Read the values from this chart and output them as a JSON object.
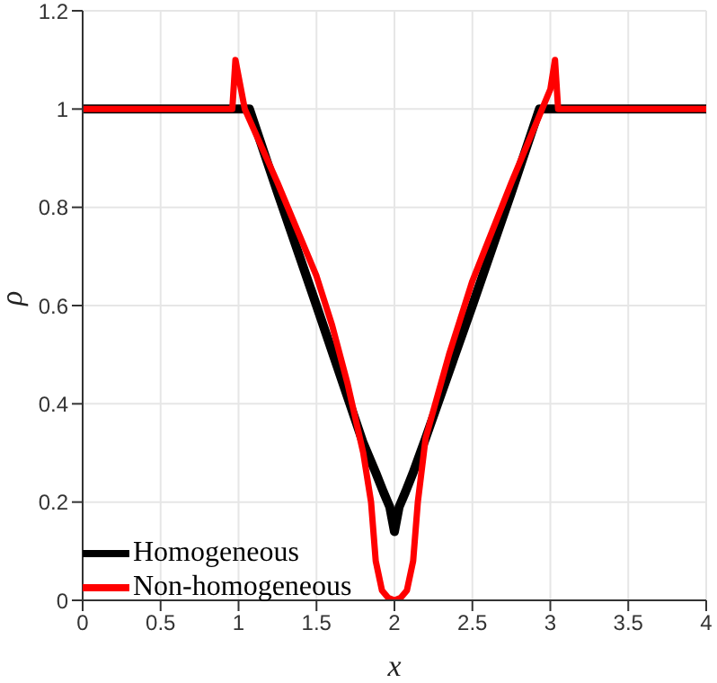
{
  "chart_data": {
    "type": "line",
    "xlabel": "x",
    "ylabel": "ρ",
    "xlim": [
      0,
      4
    ],
    "xticks": [
      0,
      0.5,
      1,
      1.5,
      2,
      2.5,
      3,
      3.5,
      4
    ],
    "ylim": [
      0,
      1.2
    ],
    "yticks": [
      0,
      0.2,
      0.4,
      0.6,
      0.8,
      1,
      1.2
    ],
    "grid": true,
    "legend": "bottom left",
    "marker": "none",
    "line_style": "solid",
    "series": [
      {
        "name": "Homogeneous",
        "color": "#000000",
        "x": [
          0,
          1.0,
          1.07,
          1.25,
          1.5,
          1.8,
          1.88,
          1.93,
          1.97,
          2.0,
          2.03,
          2.07,
          2.12,
          2.2,
          2.5,
          2.75,
          2.93,
          3.0,
          4
        ],
        "values": [
          1,
          1,
          1,
          0.83,
          0.6,
          0.32,
          0.26,
          0.22,
          0.19,
          0.14,
          0.19,
          0.22,
          0.26,
          0.33,
          0.6,
          0.83,
          1,
          1,
          1
        ]
      },
      {
        "name": "Non-homogeneous",
        "color": "#ff0000",
        "x": [
          0,
          0.96,
          0.98,
          1.04,
          1.25,
          1.5,
          1.6,
          1.7,
          1.8,
          1.85,
          1.88,
          1.92,
          1.96,
          2.0,
          2.04,
          2.08,
          2.12,
          2.15,
          2.2,
          2.35,
          2.45,
          2.5,
          2.75,
          3.0,
          3.03,
          3.05,
          4
        ],
        "values": [
          1,
          1,
          1.1,
          1.0,
          0.85,
          0.66,
          0.56,
          0.44,
          0.3,
          0.2,
          0.08,
          0.02,
          0.005,
          0,
          0.005,
          0.02,
          0.08,
          0.2,
          0.33,
          0.5,
          0.6,
          0.65,
          0.85,
          1.04,
          1.1,
          1.0,
          1
        ]
      }
    ]
  }
}
